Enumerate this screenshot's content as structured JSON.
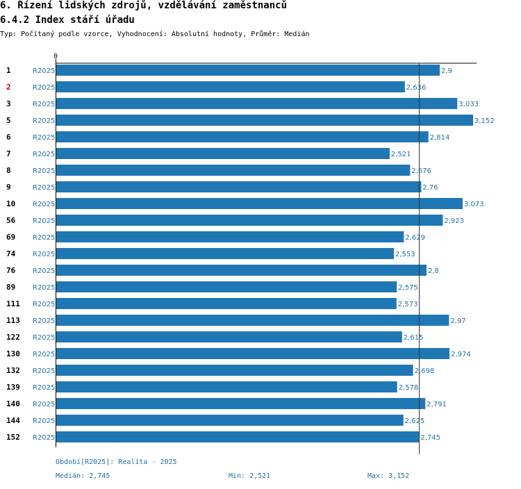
{
  "header": {
    "title": "6. Řízení lidských zdrojů, vzdělávání zaměstnanců",
    "subtitle": "6.4.2 Index stáří úřadu",
    "type_line": "Typ: Počítaný podle vzorce, Vyhodnocení: Absolutní hodnoty, Průměr: Medián"
  },
  "chart_data": {
    "type": "bar",
    "orientation": "horizontal",
    "x_axis_start_label": "0",
    "xlim": [
      0,
      3.152
    ],
    "median_line": 2.745,
    "series_label": "R2025",
    "categories": [
      "1",
      "2",
      "3",
      "5",
      "6",
      "7",
      "8",
      "9",
      "10",
      "56",
      "69",
      "74",
      "76",
      "89",
      "111",
      "113",
      "122",
      "130",
      "132",
      "139",
      "140",
      "144",
      "152"
    ],
    "values": [
      2.9,
      2.636,
      3.033,
      3.152,
      2.814,
      2.521,
      2.676,
      2.76,
      3.073,
      2.923,
      2.629,
      2.553,
      2.8,
      2.575,
      2.573,
      2.97,
      2.615,
      2.974,
      2.698,
      2.578,
      2.791,
      2.625,
      2.745
    ],
    "value_labels": [
      "2,9",
      "2,636",
      "3,033",
      "3,152",
      "2,814",
      "2,521",
      "2,676",
      "2,76",
      "3,073",
      "2,923",
      "2,629",
      "2,553",
      "2,8",
      "2,575",
      "2,573",
      "2,97",
      "2,615",
      "2,974",
      "2,698",
      "2,578",
      "2,791",
      "2,625",
      "2,745"
    ],
    "highlight_category": "2",
    "colors": {
      "bar": "#1f77b4",
      "label": "#1f6fa8",
      "highlight": "#cc0000",
      "axis": "#000000"
    }
  },
  "footer": {
    "period": "Období[R2025]: Realita - 2025",
    "median": "Medián: 2,745",
    "min": "Min: 2,521",
    "max": "Max: 3,152"
  }
}
